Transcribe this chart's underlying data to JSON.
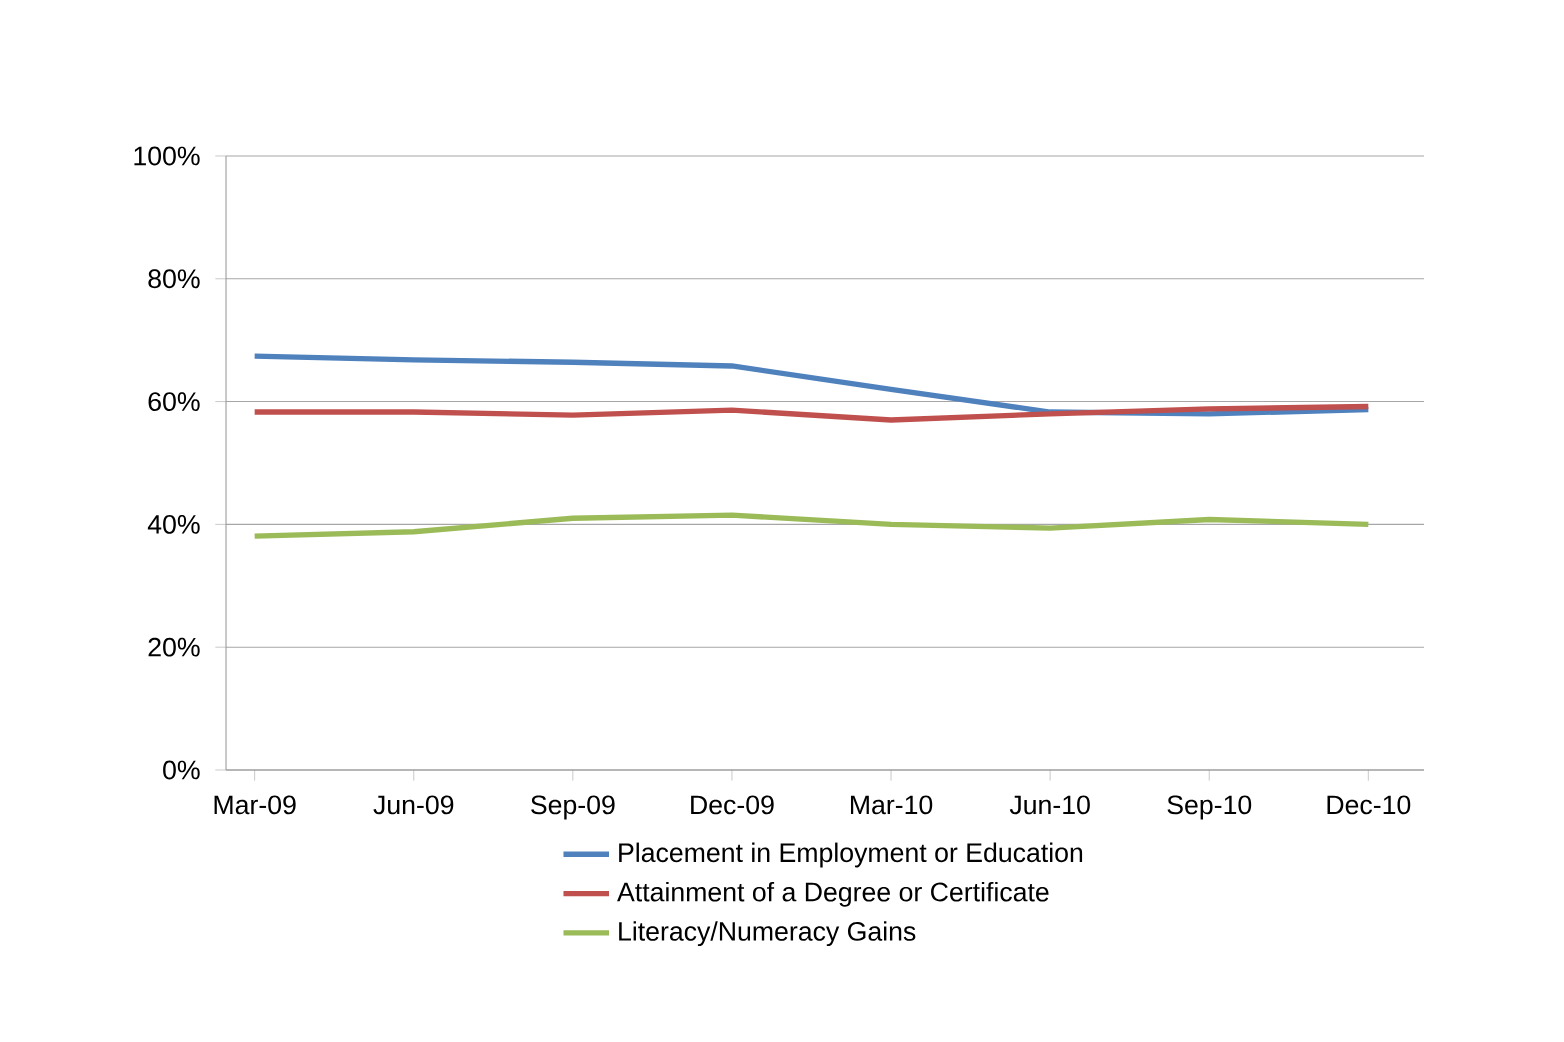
{
  "chart_data": {
    "type": "line",
    "categories": [
      "Mar-09",
      "Jun-09",
      "Sep-09",
      "Dec-09",
      "Mar-10",
      "Jun-10",
      "Sep-10",
      "Dec-10"
    ],
    "series": [
      {
        "name": "Placement in Employment or Education",
        "color": "#4f81bd",
        "values": [
          67.4,
          66.8,
          66.4,
          65.8,
          62,
          58.3,
          58,
          58.7
        ]
      },
      {
        "name": "Attainment of a Degree or Certificate",
        "color": "#c0504d",
        "values": [
          58.3,
          58.3,
          57.8,
          58.6,
          57,
          58,
          58.8,
          59.2
        ]
      },
      {
        "name": "Literacy/Numeracy Gains",
        "color": "#9bbb59",
        "values": [
          38.1,
          38.8,
          41,
          41.5,
          40,
          39.4,
          40.8,
          40
        ]
      }
    ],
    "ylim": [
      0,
      100
    ],
    "yticks": [
      {
        "value": 0,
        "label": "0%"
      },
      {
        "value": 20,
        "label": "20%"
      },
      {
        "value": 40,
        "label": "40%"
      },
      {
        "value": 60,
        "label": "60%"
      },
      {
        "value": 80,
        "label": "80%"
      },
      {
        "value": 100,
        "label": "100%"
      }
    ],
    "grid": "y",
    "legend": "bottom",
    "marker": "none",
    "line_style": "solid"
  }
}
